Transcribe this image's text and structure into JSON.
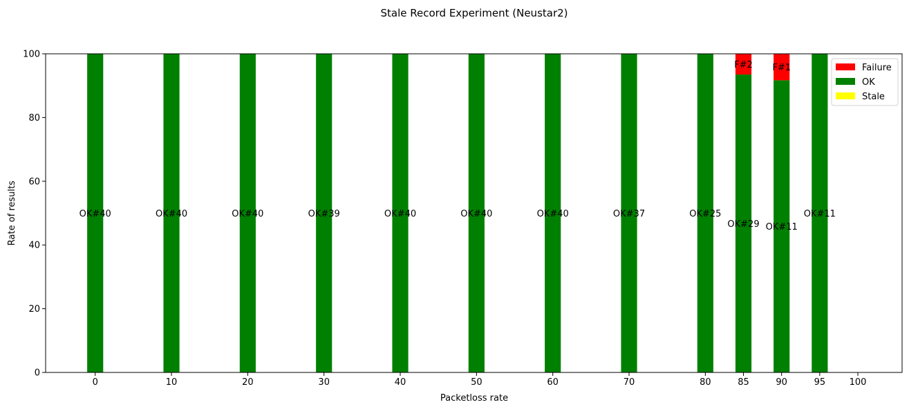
{
  "chart_data": {
    "type": "bar",
    "stacked": true,
    "title": "Stale Record Experiment (Neustar2)",
    "xlabel": "Packetloss rate",
    "ylabel": "Rate of results",
    "ylim": [
      0,
      100
    ],
    "yticks": [
      0,
      20,
      40,
      60,
      80,
      100
    ],
    "categories": [
      "0",
      "10",
      "20",
      "30",
      "40",
      "50",
      "60",
      "70",
      "80",
      "85",
      "90",
      "95",
      "100"
    ],
    "series": [
      {
        "name": "Stale",
        "color": "#ffff00",
        "values": [
          0,
          0,
          0,
          0,
          0,
          0,
          0,
          0,
          0,
          0,
          0,
          0,
          0
        ]
      },
      {
        "name": "OK",
        "color": "#008000",
        "values": [
          100,
          100,
          100,
          100,
          100,
          100,
          100,
          100,
          100,
          93.5,
          91.7,
          100,
          0
        ]
      },
      {
        "name": "Failure",
        "color": "#ff0000",
        "values": [
          0,
          0,
          0,
          0,
          0,
          0,
          0,
          0,
          0,
          6.5,
          8.3,
          0,
          0
        ]
      }
    ],
    "data_labels": {
      "OK": [
        "OK#40",
        "OK#40",
        "OK#40",
        "OK#39",
        "OK#40",
        "OK#40",
        "OK#40",
        "OK#37",
        "OK#25",
        "OK#29",
        "OK#11",
        "OK#11",
        ""
      ],
      "Failure": [
        "",
        "",
        "",
        "",
        "",
        "",
        "",
        "",
        "",
        "F#2",
        "F#1",
        "",
        ""
      ]
    },
    "legend": {
      "position": "top-right",
      "entries": [
        "Failure",
        "OK",
        "Stale"
      ]
    },
    "grid": false
  }
}
